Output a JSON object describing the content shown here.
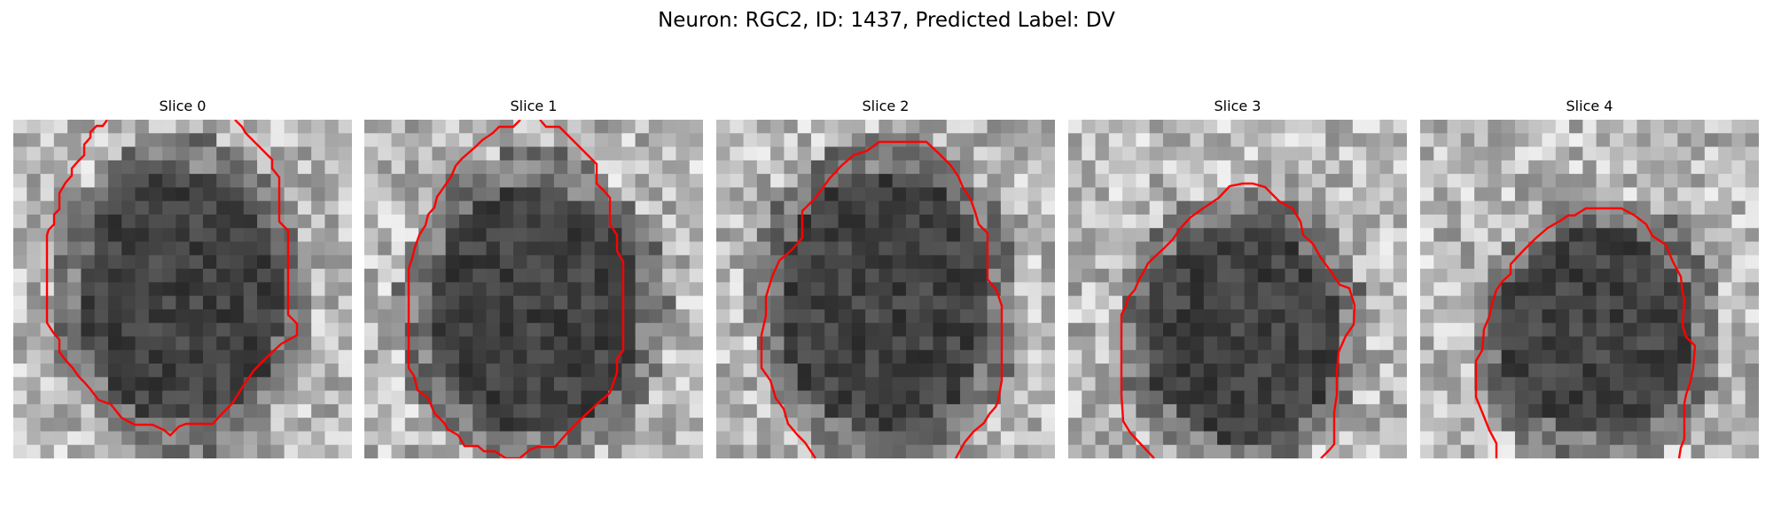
{
  "figure": {
    "title": "Neuron: RGC2, ID: 1437, Predicted Label: DV",
    "contour_color": "#ff0000"
  },
  "panels": [
    {
      "title": "Slice 0",
      "contour": [
        [
          106,
          0
        ],
        [
          101,
          7
        ],
        [
          94,
          7
        ],
        [
          87,
          14
        ],
        [
          87,
          20
        ],
        [
          80,
          28
        ],
        [
          80,
          40
        ],
        [
          73,
          47
        ],
        [
          66,
          55
        ],
        [
          66,
          63
        ],
        [
          59,
          71
        ],
        [
          52,
          83
        ],
        [
          52,
          101
        ],
        [
          46,
          107
        ],
        [
          46,
          118
        ],
        [
          40,
          124
        ],
        [
          38,
          130
        ],
        [
          38,
          229
        ],
        [
          45,
          240
        ],
        [
          52,
          248
        ],
        [
          52,
          262
        ],
        [
          58,
          270
        ],
        [
          67,
          280
        ],
        [
          74,
          290
        ],
        [
          80,
          296
        ],
        [
          87,
          304
        ],
        [
          96,
          316
        ],
        [
          110,
          321
        ],
        [
          122,
          336
        ],
        [
          137,
          344
        ],
        [
          157,
          344
        ],
        [
          170,
          350
        ],
        [
          177,
          356
        ],
        [
          187,
          346
        ],
        [
          195,
          343
        ],
        [
          225,
          343
        ],
        [
          235,
          332
        ],
        [
          247,
          320
        ],
        [
          254,
          309
        ],
        [
          262,
          296
        ],
        [
          272,
          282
        ],
        [
          287,
          267
        ],
        [
          302,
          253
        ],
        [
          320,
          243
        ],
        [
          320,
          230
        ],
        [
          310,
          220
        ],
        [
          310,
          125
        ],
        [
          300,
          115
        ],
        [
          300,
          65
        ],
        [
          292,
          55
        ],
        [
          292,
          45
        ],
        [
          282,
          35
        ],
        [
          272,
          25
        ],
        [
          262,
          15
        ],
        [
          258,
          8
        ],
        [
          250,
          0
        ]
      ]
    },
    {
      "title": "Slice 1",
      "contour": [
        [
          176,
          0
        ],
        [
          168,
          8
        ],
        [
          152,
          8
        ],
        [
          145,
          15
        ],
        [
          133,
          23
        ],
        [
          126,
          30
        ],
        [
          118,
          37
        ],
        [
          110,
          44
        ],
        [
          103,
          52
        ],
        [
          98,
          64
        ],
        [
          89,
          77
        ],
        [
          82,
          87
        ],
        [
          79,
          99
        ],
        [
          72,
          107
        ],
        [
          69,
          119
        ],
        [
          62,
          130
        ],
        [
          57,
          144
        ],
        [
          54,
          156
        ],
        [
          50,
          168
        ],
        [
          50,
          280
        ],
        [
          56,
          289
        ],
        [
          60,
          305
        ],
        [
          72,
          314
        ],
        [
          79,
          331
        ],
        [
          90,
          342
        ],
        [
          94,
          349
        ],
        [
          106,
          356
        ],
        [
          113,
          368
        ],
        [
          128,
          368
        ],
        [
          135,
          374
        ],
        [
          147,
          374
        ],
        [
          160,
          382
        ],
        [
          175,
          382
        ],
        [
          187,
          372
        ],
        [
          195,
          369
        ],
        [
          215,
          369
        ],
        [
          230,
          352
        ],
        [
          245,
          337
        ],
        [
          262,
          321
        ],
        [
          277,
          308
        ],
        [
          285,
          285
        ],
        [
          285,
          270
        ],
        [
          292,
          260
        ],
        [
          292,
          160
        ],
        [
          285,
          148
        ],
        [
          285,
          130
        ],
        [
          277,
          118
        ],
        [
          277,
          88
        ],
        [
          270,
          80
        ],
        [
          262,
          72
        ],
        [
          262,
          50
        ],
        [
          252,
          40
        ],
        [
          242,
          30
        ],
        [
          232,
          20
        ],
        [
          220,
          8
        ],
        [
          205,
          8
        ],
        [
          198,
          0
        ]
      ]
    },
    {
      "title": "Slice 2",
      "contour": [
        [
          112,
          382
        ],
        [
          100,
          364
        ],
        [
          92,
          356
        ],
        [
          81,
          343
        ],
        [
          76,
          326
        ],
        [
          67,
          314
        ],
        [
          61,
          294
        ],
        [
          51,
          280
        ],
        [
          51,
          243
        ],
        [
          56,
          221
        ],
        [
          56,
          200
        ],
        [
          63,
          177
        ],
        [
          71,
          159
        ],
        [
          86,
          146
        ],
        [
          97,
          133
        ],
        [
          97,
          103
        ],
        [
          112,
          88
        ],
        [
          128,
          66
        ],
        [
          141,
          52
        ],
        [
          155,
          40
        ],
        [
          170,
          35
        ],
        [
          184,
          25
        ],
        [
          237,
          25
        ],
        [
          253,
          40
        ],
        [
          264,
          51
        ],
        [
          273,
          64
        ],
        [
          278,
          76
        ],
        [
          287,
          90
        ],
        [
          292,
          104
        ],
        [
          296,
          118
        ],
        [
          306,
          128
        ],
        [
          306,
          180
        ],
        [
          316,
          192
        ],
        [
          322,
          210
        ],
        [
          322,
          294
        ],
        [
          318,
          317
        ],
        [
          315,
          324
        ],
        [
          308,
          332
        ],
        [
          302,
          342
        ],
        [
          290,
          352
        ],
        [
          280,
          364
        ],
        [
          270,
          382
        ]
      ]
    },
    {
      "title": "Slice 3",
      "contour": [
        [
          97,
          382
        ],
        [
          82,
          366
        ],
        [
          70,
          353
        ],
        [
          62,
          340
        ],
        [
          60,
          310
        ],
        [
          60,
          220
        ],
        [
          65,
          210
        ],
        [
          68,
          200
        ],
        [
          75,
          192
        ],
        [
          80,
          180
        ],
        [
          85,
          172
        ],
        [
          90,
          162
        ],
        [
          97,
          155
        ],
        [
          108,
          145
        ],
        [
          118,
          135
        ],
        [
          126,
          123
        ],
        [
          138,
          110
        ],
        [
          152,
          100
        ],
        [
          170,
          88
        ],
        [
          182,
          75
        ],
        [
          197,
          72
        ],
        [
          208,
          72
        ],
        [
          222,
          76
        ],
        [
          238,
          92
        ],
        [
          253,
          100
        ],
        [
          262,
          115
        ],
        [
          265,
          130
        ],
        [
          276,
          140
        ],
        [
          285,
          156
        ],
        [
          297,
          172
        ],
        [
          306,
          186
        ],
        [
          317,
          190
        ],
        [
          323,
          209
        ],
        [
          322,
          231
        ],
        [
          313,
          244
        ],
        [
          305,
          262
        ],
        [
          303,
          285
        ],
        [
          303,
          300
        ],
        [
          303,
          310
        ],
        [
          300,
          330
        ],
        [
          300,
          348
        ],
        [
          300,
          366
        ],
        [
          295,
          372
        ],
        [
          285,
          382
        ]
      ]
    },
    {
      "title": "Slice 4",
      "contour": [
        [
          86,
          382
        ],
        [
          86,
          365
        ],
        [
          78,
          350
        ],
        [
          70,
          330
        ],
        [
          63,
          313
        ],
        [
          63,
          290
        ],
        [
          63,
          272
        ],
        [
          70,
          260
        ],
        [
          72,
          236
        ],
        [
          78,
          222
        ],
        [
          81,
          208
        ],
        [
          86,
          192
        ],
        [
          93,
          182
        ],
        [
          102,
          174
        ],
        [
          102,
          163
        ],
        [
          116,
          148
        ],
        [
          130,
          134
        ],
        [
          144,
          122
        ],
        [
          158,
          114
        ],
        [
          167,
          108
        ],
        [
          174,
          108
        ],
        [
          187,
          100
        ],
        [
          227,
          100
        ],
        [
          242,
          108
        ],
        [
          255,
          118
        ],
        [
          262,
          131
        ],
        [
          277,
          141
        ],
        [
          285,
          160
        ],
        [
          294,
          177
        ],
        [
          296,
          195
        ],
        [
          298,
          202
        ],
        [
          296,
          232
        ],
        [
          300,
          245
        ],
        [
          310,
          255
        ],
        [
          308,
          280
        ],
        [
          305,
          295
        ],
        [
          300,
          310
        ],
        [
          298,
          320
        ],
        [
          298,
          334
        ],
        [
          298,
          348
        ],
        [
          298,
          360
        ],
        [
          294,
          370
        ],
        [
          292,
          382
        ]
      ]
    }
  ]
}
